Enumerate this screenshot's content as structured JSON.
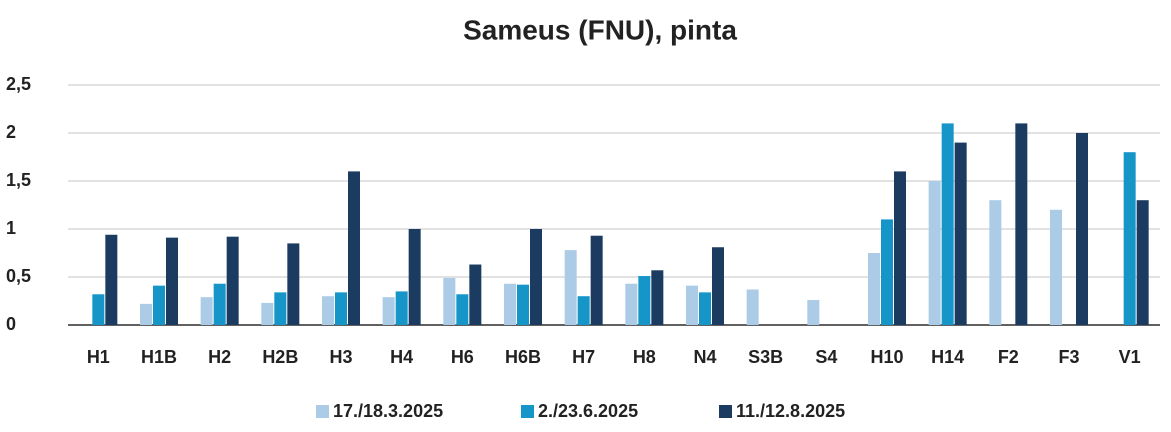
{
  "chart_data": {
    "type": "bar",
    "title": "Sameus (FNU), pinta",
    "categories": [
      "H1",
      "H1B",
      "H2",
      "H2B",
      "H3",
      "H4",
      "H6",
      "H6B",
      "H7",
      "H8",
      "N4",
      "S3B",
      "S4",
      "H10",
      "H14",
      "F2",
      "F3",
      "V1"
    ],
    "series": [
      {
        "name": "17./18.3.2025",
        "color": "#abcbe6",
        "values": [
          null,
          0.22,
          0.29,
          0.23,
          0.3,
          0.29,
          0.49,
          0.43,
          0.78,
          0.43,
          0.41,
          0.37,
          0.26,
          0.75,
          1.5,
          1.3,
          1.2,
          null
        ]
      },
      {
        "name": "2./23.6.2025",
        "color": "#1696c8",
        "values": [
          0.32,
          0.41,
          0.43,
          0.34,
          0.34,
          0.35,
          0.32,
          0.42,
          0.3,
          0.51,
          0.34,
          null,
          null,
          1.1,
          2.1,
          null,
          null,
          1.8
        ]
      },
      {
        "name": "11./12.8.2025",
        "color": "#1b3b60",
        "values": [
          0.94,
          0.91,
          0.92,
          0.85,
          1.6,
          1.0,
          0.63,
          1.0,
          0.93,
          0.57,
          0.81,
          null,
          null,
          1.6,
          1.9,
          2.1,
          2.0,
          1.3
        ]
      }
    ],
    "ylim": [
      0,
      2.5
    ],
    "yticks": [
      0,
      {
        "value": 0.5,
        "label": "0,5"
      },
      1,
      {
        "value": 1.5,
        "label": "1,5"
      },
      2,
      {
        "value": 2.5,
        "label": "2,5"
      }
    ],
    "grid": true,
    "legend": "bottom"
  }
}
